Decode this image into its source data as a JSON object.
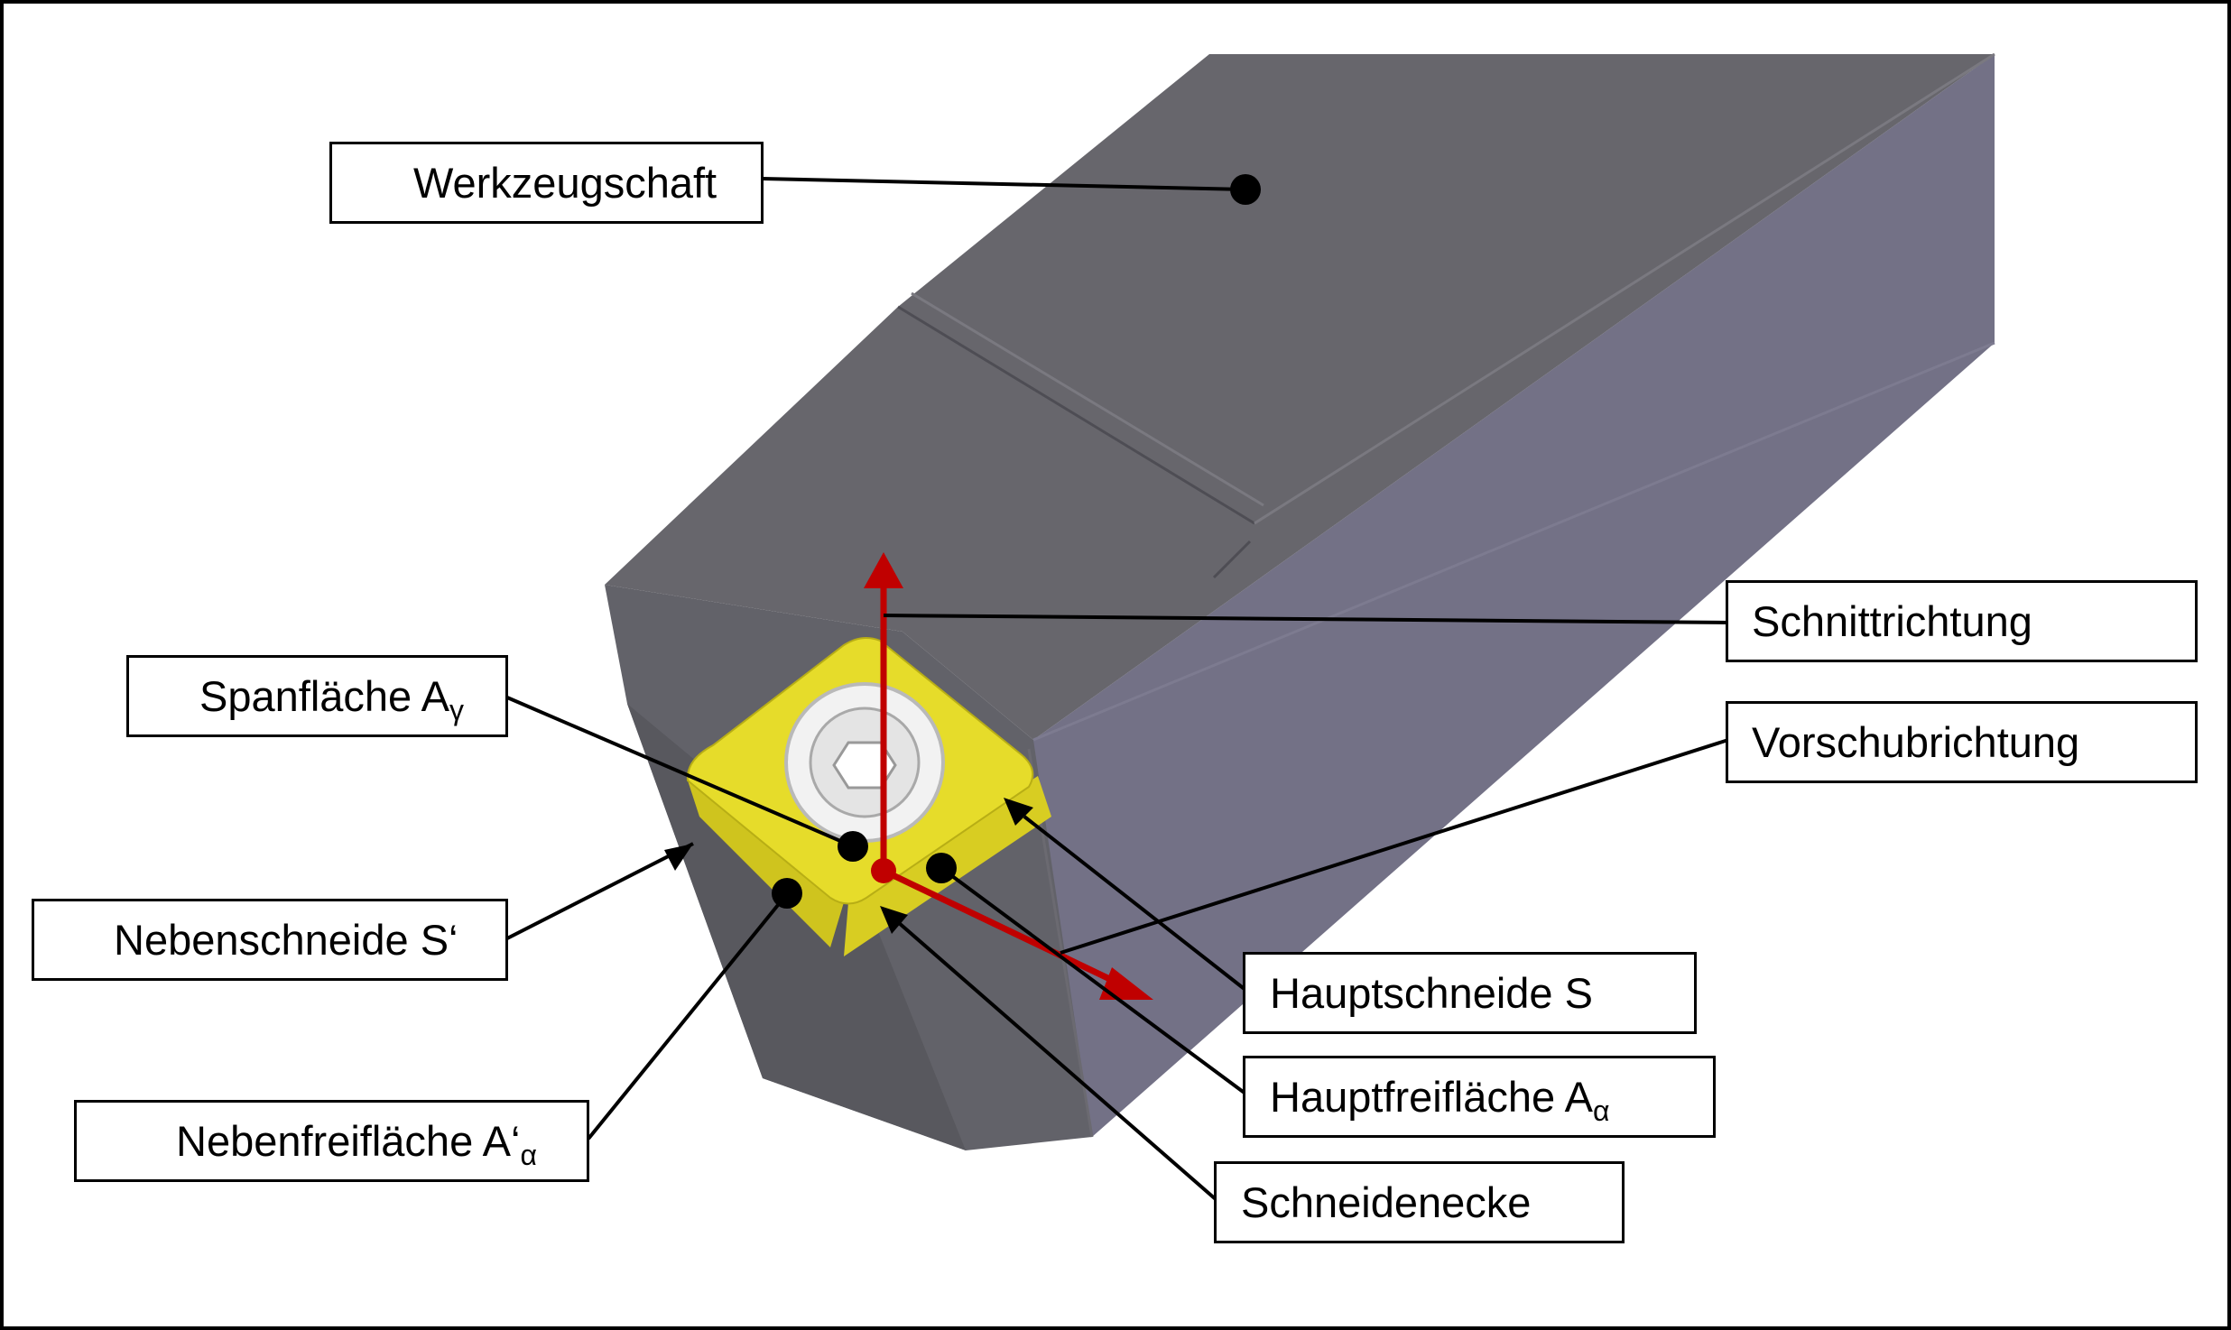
{
  "diagram": {
    "labels": {
      "werkzeugschaft": "Werkzeugschaft",
      "schnittrichtung": "Schnittrichtung",
      "spanflaeche": "Spanfläche A",
      "spanflaeche_sub": "γ",
      "vorschubrichtung": "Vorschubrichtung",
      "nebenschneide": "Nebenschneide S‘",
      "hauptschneide": "Hauptschneide S",
      "hauptfreiflaeche": "Hauptfreifläche A",
      "hauptfreiflaeche_sub": "α",
      "nebenfreiflaeche": "Nebenfreifläche A‘",
      "nebenfreiflaeche_sub": "α",
      "schneidenecke": "Schneidenecke"
    },
    "colors": {
      "shank_top": "#67666c",
      "shank_side": "#737186",
      "shank_front": "#626269",
      "insert": "#e6dc2a",
      "arrow": "#c00000",
      "line": "#000000"
    }
  }
}
